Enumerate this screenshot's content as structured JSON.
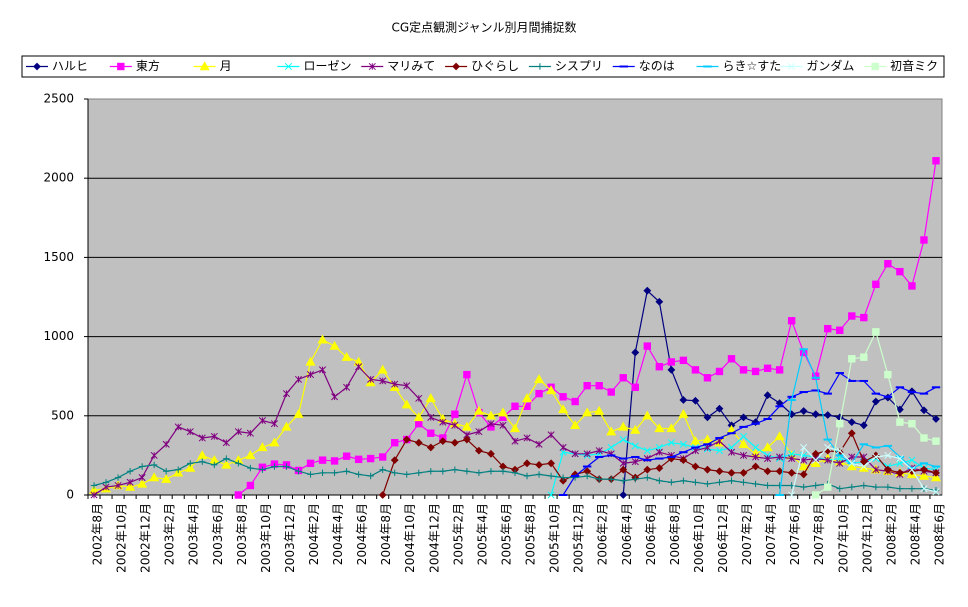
{
  "chart_data": {
    "type": "line",
    "title": "CG定点観測ジャンル別月間捕捉数",
    "categories": [
      "2002年8月",
      null,
      "2002年10月",
      null,
      "2002年12月",
      null,
      "2003年2月",
      null,
      "2003年4月",
      null,
      "2003年6月",
      null,
      "2003年8月",
      null,
      "2003年10月",
      null,
      "2003年12月",
      null,
      "2004年2月",
      null,
      "2004年4月",
      null,
      "2004年6月",
      null,
      "2004年8月",
      null,
      "2004年10月",
      null,
      "2004年12月",
      null,
      "2005年2月",
      null,
      "2005年4月",
      null,
      "2005年6月",
      null,
      "2005年8月",
      null,
      "2005年10月",
      null,
      "2005年12月",
      null,
      "2006年2月",
      null,
      "2006年4月",
      null,
      "2006年6月",
      null,
      "2006年8月",
      null,
      "2006年10月",
      null,
      "2006年12月",
      null,
      "2007年2月",
      null,
      "2007年4月",
      null,
      "2007年6月",
      null,
      "2007年8月",
      null,
      "2007年10月",
      null,
      "2007年12月",
      null,
      "2008年2月",
      null,
      "2008年4月",
      null,
      "2008年6月"
    ],
    "series": [
      {
        "name": "ハルヒ",
        "color": "#000080",
        "marker": "diamond",
        "values": [
          null,
          null,
          null,
          null,
          null,
          null,
          null,
          null,
          null,
          null,
          null,
          null,
          null,
          null,
          null,
          null,
          null,
          null,
          null,
          null,
          null,
          null,
          null,
          null,
          null,
          null,
          null,
          null,
          null,
          null,
          null,
          null,
          null,
          null,
          null,
          null,
          null,
          null,
          null,
          null,
          null,
          null,
          null,
          null,
          0,
          900,
          1290,
          1220,
          790,
          600,
          595,
          490,
          545,
          440,
          490,
          460,
          630,
          580,
          510,
          530,
          510,
          505,
          490,
          460,
          440,
          590,
          615,
          540,
          655,
          535,
          480
        ]
      },
      {
        "name": "東方",
        "color": "#ff00ff",
        "marker": "square",
        "values": [
          null,
          null,
          null,
          null,
          null,
          null,
          null,
          null,
          null,
          null,
          null,
          null,
          0,
          60,
          175,
          195,
          190,
          155,
          200,
          220,
          215,
          245,
          225,
          230,
          240,
          330,
          350,
          450,
          390,
          360,
          510,
          760,
          520,
          430,
          490,
          560,
          560,
          640,
          680,
          620,
          590,
          690,
          690,
          650,
          740,
          680,
          940,
          810,
          840,
          850,
          790,
          740,
          780,
          860,
          790,
          780,
          800,
          790,
          1100,
          900,
          750,
          1050,
          1040,
          1130,
          1120,
          1330,
          1460,
          1410,
          1320,
          1610,
          2110
        ]
      },
      {
        "name": "月",
        "color": "#ffff00",
        "marker": "triangle",
        "values": [
          30,
          40,
          60,
          50,
          70,
          110,
          100,
          140,
          170,
          250,
          220,
          190,
          220,
          250,
          300,
          330,
          430,
          510,
          840,
          980,
          940,
          870,
          840,
          710,
          790,
          680,
          570,
          490,
          610,
          480,
          450,
          430,
          530,
          500,
          520,
          420,
          610,
          730,
          660,
          540,
          440,
          520,
          530,
          400,
          430,
          410,
          500,
          420,
          420,
          510,
          340,
          350,
          330,
          410,
          320,
          260,
          300,
          370,
          250,
          180,
          200,
          230,
          210,
          180,
          170,
          160,
          150,
          140,
          130,
          120,
          110
        ]
      },
      {
        "name": "ローゼン",
        "color": "#00ffff",
        "marker": "x",
        "values": [
          null,
          null,
          null,
          null,
          null,
          null,
          null,
          null,
          null,
          null,
          null,
          null,
          null,
          null,
          null,
          null,
          null,
          null,
          null,
          null,
          null,
          null,
          null,
          null,
          null,
          null,
          null,
          null,
          null,
          null,
          null,
          null,
          null,
          null,
          null,
          null,
          null,
          null,
          0,
          270,
          260,
          250,
          260,
          300,
          350,
          310,
          280,
          300,
          330,
          320,
          300,
          290,
          280,
          300,
          370,
          300,
          250,
          230,
          260,
          250,
          240,
          220,
          230,
          200,
          210,
          230,
          180,
          200,
          220,
          170,
          160
        ]
      },
      {
        "name": "マリみて",
        "color": "#800080",
        "marker": "asterisk",
        "values": [
          0,
          50,
          60,
          80,
          110,
          250,
          320,
          430,
          400,
          360,
          370,
          330,
          400,
          390,
          470,
          450,
          640,
          730,
          760,
          790,
          620,
          680,
          810,
          730,
          720,
          700,
          690,
          610,
          490,
          460,
          440,
          380,
          400,
          450,
          440,
          340,
          360,
          320,
          380,
          300,
          260,
          260,
          280,
          260,
          200,
          210,
          230,
          270,
          250,
          230,
          280,
          300,
          340,
          270,
          250,
          240,
          230,
          240,
          230,
          220,
          230,
          220,
          200,
          240,
          240,
          160,
          150,
          130,
          170,
          150,
          140
        ]
      },
      {
        "name": "ひぐらし",
        "color": "#800000",
        "marker": "diamond",
        "values": [
          null,
          null,
          null,
          null,
          null,
          null,
          null,
          null,
          null,
          null,
          null,
          null,
          null,
          null,
          null,
          null,
          null,
          null,
          null,
          null,
          null,
          null,
          null,
          null,
          0,
          220,
          350,
          330,
          300,
          340,
          330,
          350,
          280,
          260,
          180,
          160,
          200,
          190,
          200,
          90,
          130,
          150,
          100,
          100,
          160,
          110,
          160,
          170,
          230,
          220,
          180,
          160,
          150,
          140,
          140,
          180,
          150,
          150,
          140,
          130,
          260,
          280,
          270,
          390,
          210,
          250,
          160,
          140,
          150,
          160,
          140
        ]
      },
      {
        "name": "シスプリ",
        "color": "#008080",
        "marker": "plus",
        "values": [
          60,
          80,
          110,
          150,
          180,
          190,
          150,
          160,
          200,
          210,
          190,
          230,
          200,
          170,
          160,
          180,
          180,
          150,
          130,
          140,
          140,
          150,
          130,
          120,
          160,
          140,
          130,
          140,
          150,
          150,
          160,
          150,
          140,
          150,
          150,
          140,
          120,
          130,
          120,
          110,
          110,
          120,
          100,
          100,
          90,
          100,
          110,
          90,
          80,
          90,
          80,
          70,
          80,
          90,
          80,
          70,
          60,
          60,
          60,
          50,
          60,
          70,
          40,
          50,
          60,
          50,
          50,
          40,
          40,
          40,
          30
        ]
      },
      {
        "name": "なのは",
        "color": "#0000ff",
        "marker": "dash",
        "values": [
          null,
          null,
          null,
          null,
          null,
          null,
          null,
          null,
          null,
          null,
          null,
          null,
          null,
          null,
          null,
          null,
          null,
          null,
          null,
          null,
          null,
          null,
          null,
          null,
          null,
          null,
          null,
          null,
          null,
          null,
          null,
          null,
          null,
          null,
          null,
          null,
          null,
          null,
          null,
          0,
          120,
          180,
          240,
          250,
          230,
          240,
          220,
          230,
          240,
          270,
          300,
          320,
          360,
          390,
          430,
          450,
          480,
          560,
          620,
          650,
          660,
          640,
          770,
          720,
          720,
          640,
          620,
          680,
          650,
          640,
          680
        ]
      },
      {
        "name": "らき☆すた",
        "color": "#00ccff",
        "marker": "dash",
        "values": [
          null,
          null,
          null,
          null,
          null,
          null,
          null,
          null,
          null,
          null,
          null,
          null,
          null,
          null,
          null,
          null,
          null,
          null,
          null,
          null,
          null,
          null,
          null,
          null,
          null,
          null,
          null,
          null,
          null,
          null,
          null,
          null,
          null,
          null,
          null,
          null,
          null,
          null,
          null,
          null,
          null,
          null,
          null,
          null,
          null,
          null,
          null,
          null,
          null,
          null,
          null,
          null,
          null,
          null,
          null,
          null,
          null,
          0,
          600,
          920,
          740,
          350,
          250,
          200,
          320,
          300,
          310,
          240,
          170,
          200,
          180
        ]
      },
      {
        "name": "ガンダム",
        "color": "#ccffff",
        "marker": "x",
        "values": [
          null,
          null,
          null,
          null,
          null,
          null,
          null,
          null,
          null,
          null,
          null,
          null,
          null,
          null,
          null,
          null,
          null,
          null,
          null,
          null,
          null,
          null,
          null,
          null,
          null,
          null,
          null,
          null,
          null,
          null,
          null,
          null,
          null,
          null,
          null,
          null,
          null,
          null,
          null,
          null,
          null,
          null,
          null,
          null,
          null,
          null,
          null,
          null,
          null,
          null,
          null,
          null,
          null,
          null,
          null,
          null,
          null,
          null,
          0,
          300,
          220,
          300,
          280,
          200,
          180,
          240,
          250,
          230,
          160,
          40,
          20
        ]
      },
      {
        "name": "初音ミク",
        "color": "#ccffcc",
        "marker": "square",
        "values": [
          null,
          null,
          null,
          null,
          null,
          null,
          null,
          null,
          null,
          null,
          null,
          null,
          null,
          null,
          null,
          null,
          null,
          null,
          null,
          null,
          null,
          null,
          null,
          null,
          null,
          null,
          null,
          null,
          null,
          null,
          null,
          null,
          null,
          null,
          null,
          null,
          null,
          null,
          null,
          null,
          null,
          null,
          null,
          null,
          null,
          null,
          null,
          null,
          null,
          null,
          null,
          null,
          null,
          null,
          null,
          null,
          null,
          null,
          null,
          null,
          0,
          50,
          450,
          860,
          870,
          1030,
          760,
          460,
          450,
          360,
          340
        ]
      }
    ],
    "ylim": [
      0,
      2500
    ],
    "yticks": [
      0,
      500,
      1000,
      1500,
      2000,
      2500
    ],
    "grid": true,
    "legend": "top"
  }
}
